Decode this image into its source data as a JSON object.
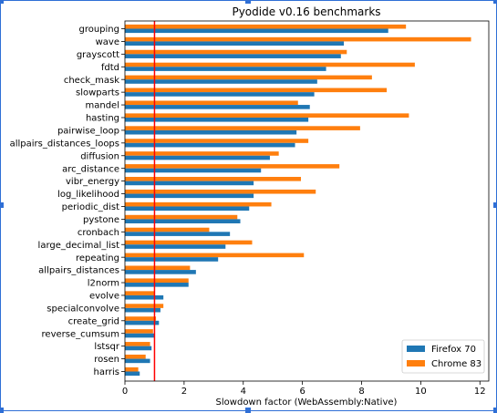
{
  "chart_data": {
    "type": "bar",
    "orientation": "horizontal",
    "title": "Pyodide v0.16 benchmarks",
    "xlabel": "Slowdown factor (WebAssembly:Native)",
    "ylabel": "",
    "xlim": [
      0,
      12.3
    ],
    "xticks": [
      0,
      2,
      4,
      6,
      8,
      10,
      12
    ],
    "reference_line": {
      "x": 1,
      "color": "#ff0000"
    },
    "legend_position": "lower-right",
    "categories": [
      "grouping",
      "wave",
      "grayscott",
      "fdtd",
      "check_mask",
      "slowparts",
      "mandel",
      "hasting",
      "pairwise_loop",
      "allpairs_distances_loops",
      "diffusion",
      "arc_distance",
      "vibr_energy",
      "log_likelihood",
      "periodic_dist",
      "pystone",
      "cronbach",
      "large_decimal_list",
      "repeating",
      "allpairs_distances",
      "l2norm",
      "evolve",
      "specialconvolve",
      "create_grid",
      "reverse_cumsum",
      "lstsqr",
      "rosen",
      "harris"
    ],
    "series": [
      {
        "name": "Firefox 70",
        "color": "#1f77b4",
        "values": [
          8.9,
          7.4,
          7.3,
          6.8,
          6.5,
          6.4,
          6.25,
          6.2,
          5.8,
          5.75,
          4.9,
          4.6,
          4.35,
          4.35,
          4.2,
          3.9,
          3.55,
          3.4,
          3.15,
          2.4,
          2.15,
          1.3,
          1.2,
          1.15,
          1.0,
          0.9,
          0.85,
          0.5
        ]
      },
      {
        "name": "Chrome 83",
        "color": "#ff7f0e",
        "values": [
          9.5,
          11.7,
          7.5,
          9.8,
          8.35,
          8.85,
          5.85,
          9.6,
          7.95,
          6.2,
          5.2,
          7.25,
          5.95,
          6.45,
          4.95,
          3.8,
          2.85,
          4.3,
          6.05,
          2.2,
          2.15,
          1.0,
          1.3,
          1.05,
          0.95,
          0.85,
          0.7,
          0.45
        ]
      }
    ]
  }
}
